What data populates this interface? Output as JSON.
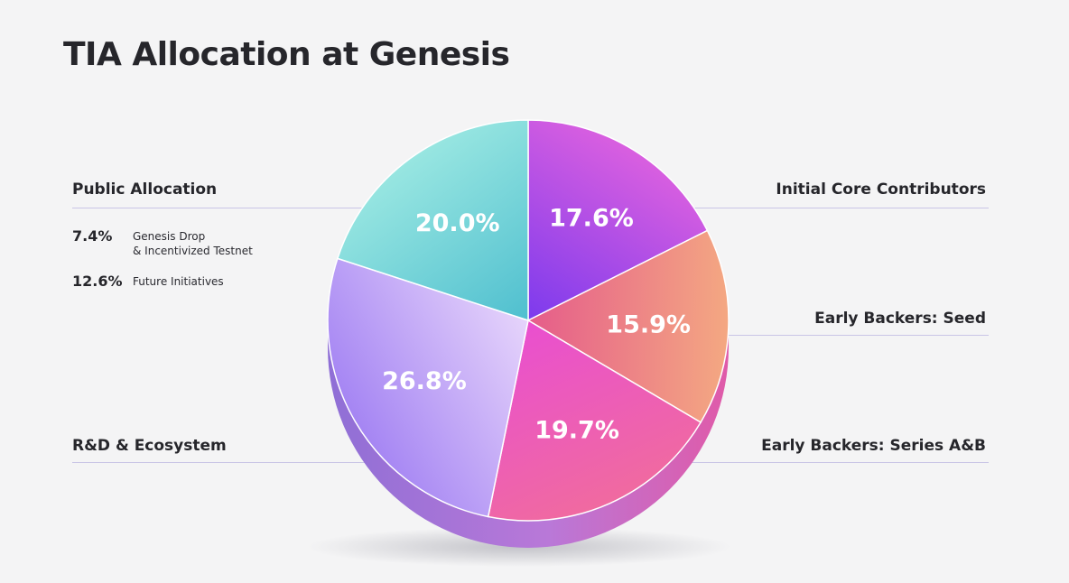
{
  "title": "TIA Allocation at Genesis",
  "chart_data": {
    "type": "pie",
    "title": "TIA Allocation at Genesis",
    "slices": [
      {
        "name": "Initial Core Contributors",
        "value": 17.6,
        "label": "17.6%",
        "color_a": "#7c3aed",
        "color_b": "#d95fe0"
      },
      {
        "name": "Early Backers: Seed",
        "value": 15.9,
        "label": "15.9%",
        "color_a": "#e55c8a",
        "color_b": "#f4a882"
      },
      {
        "name": "Early Backers: Series A&B",
        "value": 19.7,
        "label": "19.7%",
        "color_a": "#e94fd0",
        "color_b": "#f06aa0"
      },
      {
        "name": "R&D & Ecosystem",
        "value": 26.8,
        "label": "26.8%",
        "color_a": "#e6d4fb",
        "color_b": "#a585f3"
      },
      {
        "name": "Public Allocation",
        "value": 20.0,
        "label": "20.0%",
        "color_a": "#4fbfcf",
        "color_b": "#98e6e1"
      }
    ],
    "public_breakdown": [
      {
        "value": 7.4,
        "label": "7.4%",
        "desc": "Genesis Drop\n& Incentivized Testnet"
      },
      {
        "value": 12.6,
        "label": "12.6%",
        "desc": "Future Initiatives"
      }
    ]
  },
  "legend": {
    "public_allocation": "Public Allocation",
    "initial_core": "Initial Core Contributors",
    "seed": "Early Backers: Seed",
    "rnd": "R&D & Ecosystem",
    "series_ab": "Early Backers: Series A&B"
  }
}
